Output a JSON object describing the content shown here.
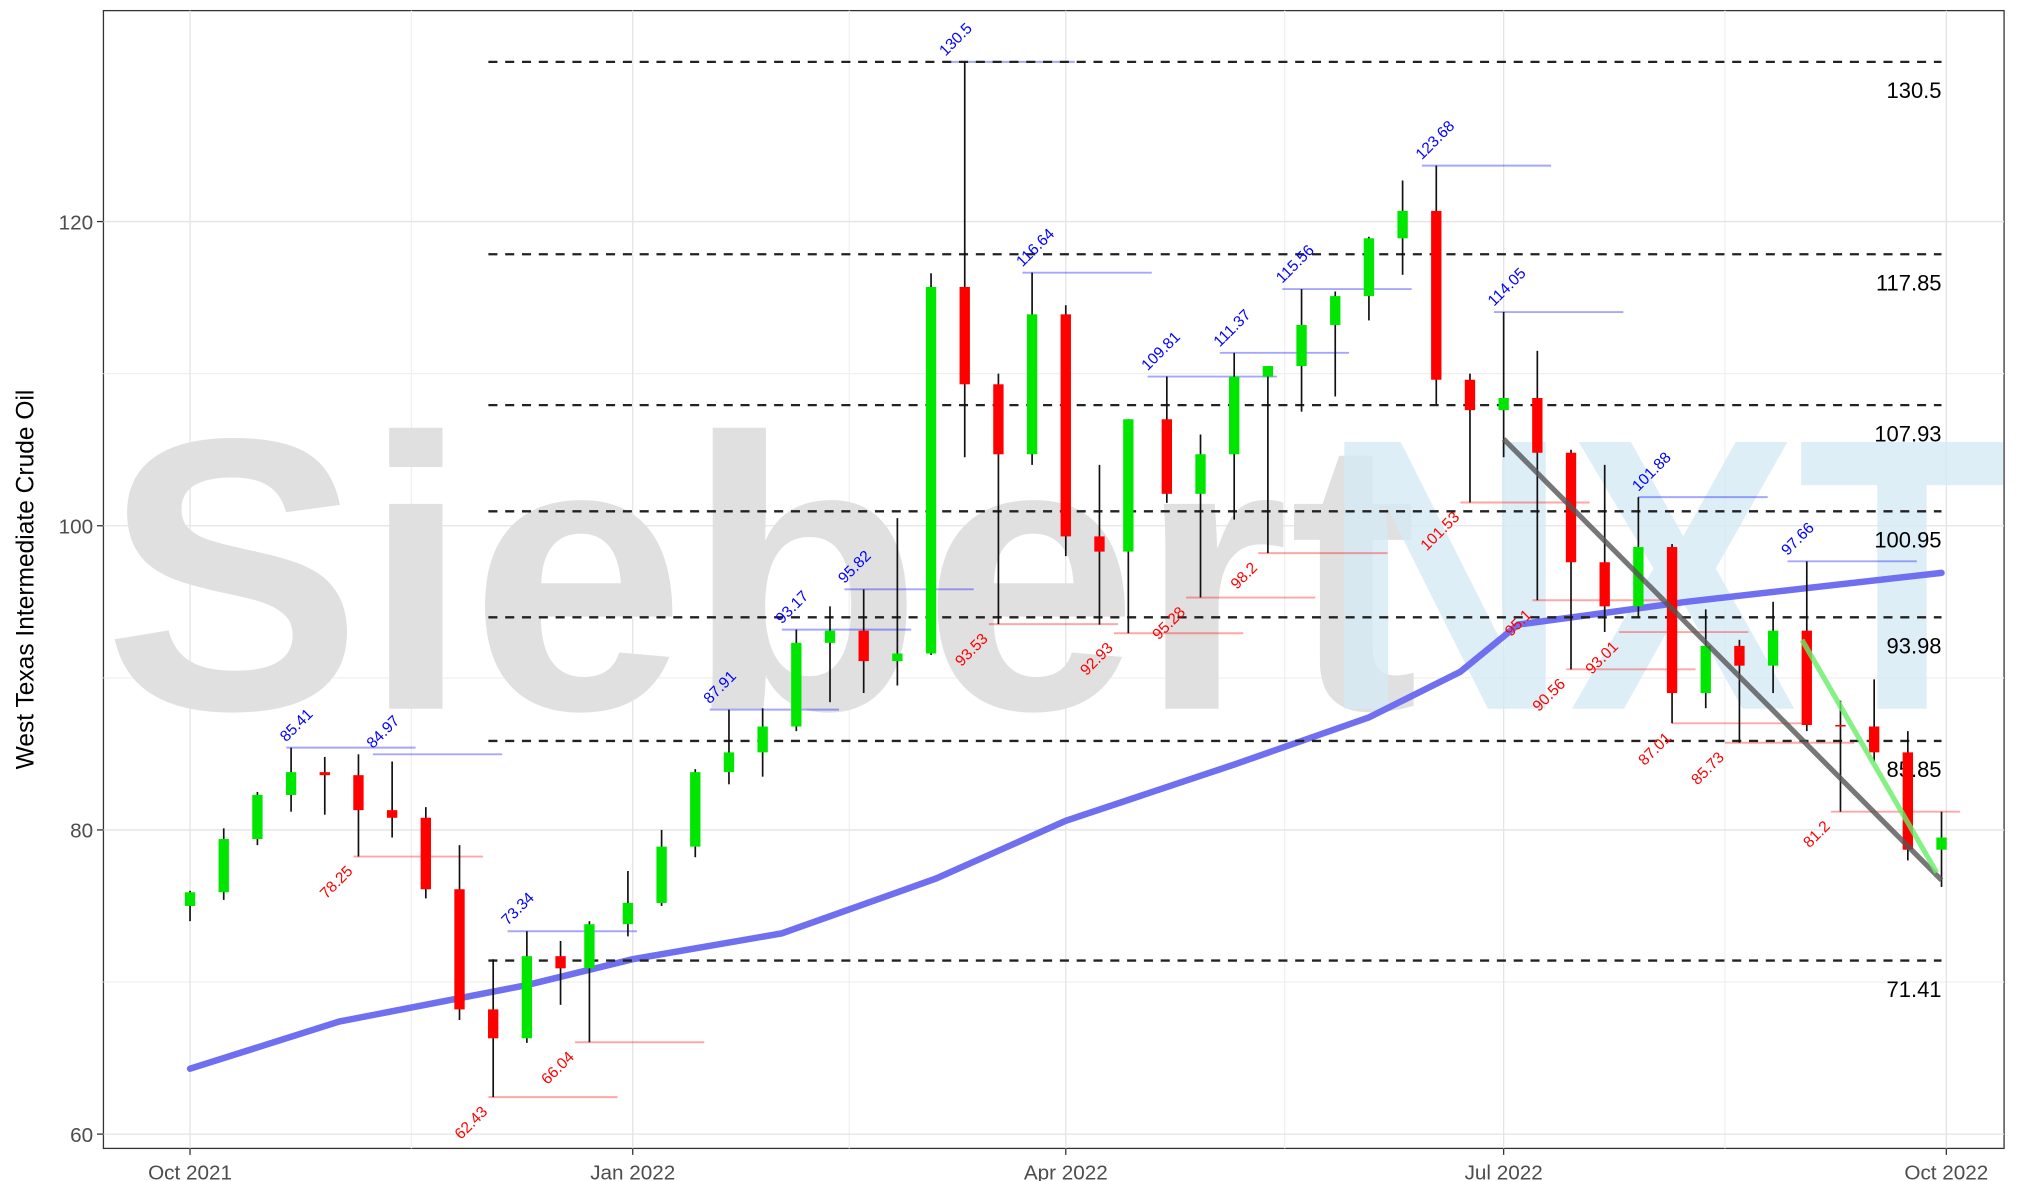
{
  "chart_data": {
    "type": "candlestick",
    "y_label": "West Texas Intermediate Crude Oil",
    "watermark": [
      "Siebert",
      "NXT"
    ],
    "xlim": [
      "2021-09-13",
      "2022-10-13"
    ],
    "xticks": [
      {
        "value": "2021-10-01",
        "label": "Oct 2021"
      },
      {
        "value": "2022-01-01",
        "label": "Jan 2022"
      },
      {
        "value": "2022-04-01",
        "label": "Apr 2022"
      },
      {
        "value": "2022-07-01",
        "label": "Jul 2022"
      },
      {
        "value": "2022-10-01",
        "label": "Oct 2022"
      }
    ],
    "ylim": [
      59.06,
      133.87
    ],
    "yticks": [
      60,
      80,
      100,
      120
    ],
    "grid": true,
    "up_color": "#00e600",
    "down_color": "#ff0000",
    "x": [
      "2021-10-01",
      "2021-10-08",
      "2021-10-15",
      "2021-10-22",
      "2021-10-29",
      "2021-11-05",
      "2021-11-12",
      "2021-11-19",
      "2021-11-26",
      "2021-12-03",
      "2021-12-10",
      "2021-12-17",
      "2021-12-23",
      "2021-12-31",
      "2022-01-07",
      "2022-01-14",
      "2022-01-21",
      "2022-01-28",
      "2022-02-04",
      "2022-02-11",
      "2022-02-18",
      "2022-02-25",
      "2022-03-04",
      "2022-03-11",
      "2022-03-18",
      "2022-03-25",
      "2022-04-01",
      "2022-04-08",
      "2022-04-14",
      "2022-04-22",
      "2022-04-29",
      "2022-05-06",
      "2022-05-13",
      "2022-05-20",
      "2022-05-27",
      "2022-06-03",
      "2022-06-10",
      "2022-06-17",
      "2022-06-24",
      "2022-07-01",
      "2022-07-08",
      "2022-07-15",
      "2022-07-22",
      "2022-07-29",
      "2022-08-05",
      "2022-08-12",
      "2022-08-19",
      "2022-08-26",
      "2022-09-02",
      "2022-09-09",
      "2022-09-16",
      "2022-09-23",
      "2022-09-30"
    ],
    "open": [
      75.0,
      75.9,
      79.4,
      82.3,
      83.8,
      83.6,
      81.3,
      80.8,
      76.1,
      68.2,
      66.3,
      71.7,
      70.9,
      73.8,
      75.2,
      78.9,
      83.8,
      85.1,
      86.8,
      92.3,
      93.1,
      91.1,
      91.6,
      115.7,
      109.3,
      104.7,
      113.9,
      99.3,
      98.3,
      107.0,
      102.1,
      104.7,
      109.8,
      110.5,
      113.2,
      115.1,
      118.9,
      120.7,
      109.6,
      107.6,
      108.4,
      104.8,
      97.6,
      94.7,
      98.6,
      89.0,
      92.1,
      90.8,
      93.1,
      86.9,
      86.8,
      85.1,
      78.7
    ],
    "high": [
      76.0,
      80.1,
      82.5,
      85.41,
      84.8,
      84.97,
      84.5,
      81.5,
      79.0,
      71.5,
      73.34,
      72.7,
      74.0,
      77.3,
      80.0,
      84.0,
      87.91,
      88.0,
      93.17,
      94.7,
      95.82,
      100.5,
      116.6,
      130.5,
      110.0,
      116.64,
      114.5,
      104.0,
      107.0,
      109.81,
      106.0,
      111.37,
      110.5,
      115.56,
      115.4,
      119.0,
      122.7,
      123.68,
      110.0,
      114.05,
      111.5,
      105.0,
      104.0,
      101.88,
      98.8,
      94.5,
      92.5,
      95.0,
      97.66,
      88.5,
      89.9,
      86.5,
      81.2
    ],
    "low": [
      74.0,
      75.4,
      79.0,
      81.2,
      81.0,
      78.25,
      79.5,
      75.5,
      67.5,
      62.43,
      66.0,
      68.5,
      66.04,
      73.0,
      75.0,
      78.2,
      83.0,
      83.5,
      86.5,
      88.4,
      89.0,
      89.5,
      91.5,
      104.5,
      93.53,
      104.0,
      98.0,
      93.5,
      92.93,
      101.5,
      95.28,
      100.4,
      98.2,
      107.5,
      108.5,
      113.5,
      116.5,
      108.0,
      101.53,
      104.5,
      95.1,
      90.56,
      93.01,
      94.0,
      87.01,
      88.0,
      85.73,
      89.0,
      86.5,
      81.2,
      84.5,
      78.0,
      76.25
    ],
    "close": [
      75.9,
      79.4,
      82.3,
      83.8,
      83.6,
      81.3,
      80.8,
      76.1,
      68.2,
      66.3,
      71.7,
      70.9,
      73.8,
      75.2,
      78.9,
      83.8,
      85.1,
      86.8,
      92.3,
      93.1,
      91.1,
      91.6,
      115.7,
      109.3,
      104.7,
      113.9,
      99.3,
      98.3,
      107.0,
      102.1,
      104.7,
      109.8,
      110.5,
      113.2,
      115.1,
      118.9,
      120.7,
      109.6,
      107.6,
      108.4,
      104.8,
      97.6,
      94.7,
      98.6,
      89.0,
      92.1,
      90.8,
      93.1,
      86.9,
      86.8,
      85.1,
      78.7,
      79.5
    ],
    "moving_average": {
      "color": "#6f6ff0",
      "x": [
        "2021-10-01",
        "2021-11-01",
        "2021-12-10",
        "2022-01-01",
        "2022-02-01",
        "2022-03-05",
        "2022-04-01",
        "2022-05-06",
        "2022-06-03",
        "2022-06-22",
        "2022-07-04",
        "2022-08-08",
        "2022-09-30"
      ],
      "values": [
        64.3,
        67.4,
        69.8,
        71.5,
        73.2,
        76.8,
        80.6,
        84.3,
        87.4,
        90.4,
        93.5,
        95.0,
        96.9
      ]
    },
    "trendlines": [
      {
        "color": "#555555",
        "x": [
          "2022-07-01",
          "2022-09-30"
        ],
        "values": [
          105.7,
          76.7
        ]
      },
      {
        "color": "#66ee66",
        "x": [
          "2022-09-01",
          "2022-09-29"
        ],
        "values": [
          92.5,
          77.2
        ]
      }
    ],
    "levels": [
      130.5,
      117.85,
      107.93,
      100.95,
      93.98,
      85.85,
      71.41
    ],
    "peaks": {
      "color": "#0000ff",
      "x": [
        "2021-10-21",
        "2021-11-08",
        "2021-12-06",
        "2022-01-17",
        "2022-02-01",
        "2022-02-14",
        "2022-03-07",
        "2022-03-23",
        "2022-04-18",
        "2022-05-03",
        "2022-05-16",
        "2022-06-14",
        "2022-06-29",
        "2022-07-29",
        "2022-08-29"
      ],
      "values": [
        85.41,
        84.97,
        73.34,
        87.91,
        93.17,
        95.82,
        130.5,
        116.64,
        109.81,
        111.37,
        115.56,
        123.68,
        114.05,
        101.88,
        97.66
      ]
    },
    "troughs": {
      "color": "#ff0000",
      "x": [
        "2021-11-04",
        "2021-12-02",
        "2021-12-20",
        "2022-03-16",
        "2022-04-11",
        "2022-04-26",
        "2022-05-11",
        "2022-06-22",
        "2022-07-07",
        "2022-07-14",
        "2022-07-25",
        "2022-08-05",
        "2022-08-16",
        "2022-09-07"
      ],
      "values": [
        78.25,
        62.43,
        66.04,
        93.53,
        92.93,
        95.28,
        98.2,
        101.53,
        95.1,
        90.56,
        93.01,
        87.01,
        85.73,
        81.2
      ]
    }
  }
}
